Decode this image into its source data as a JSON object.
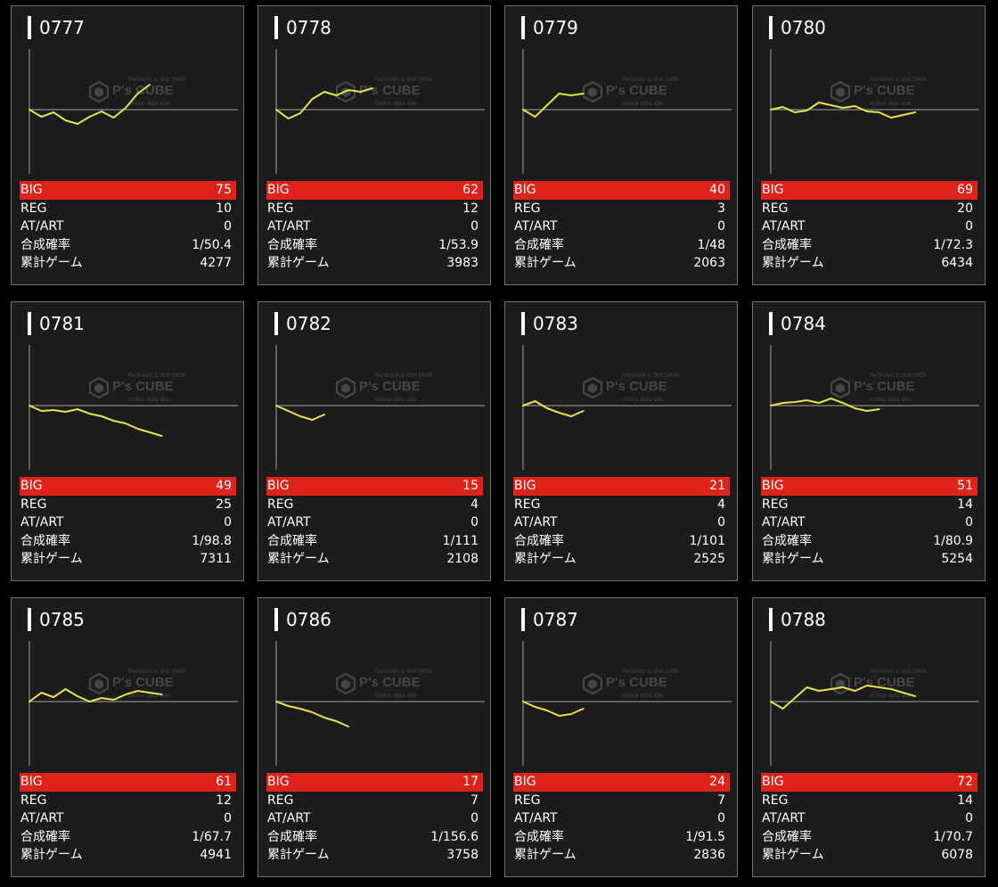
{
  "colors": {
    "big_row": "#e0231a",
    "line": "#e6e24d",
    "axis": "#8a8a8a",
    "panel": "#1c1c1c",
    "border": "#6e6e6e"
  },
  "watermark": {
    "brand": "P's CUBE",
    "sub": "Pachislot & Slot DATA",
    "sub2": "online data site"
  },
  "labels": {
    "big": "BIG",
    "reg": "REG",
    "at": "AT/ART",
    "prob": "合成確率",
    "games": "累計ゲーム"
  },
  "machines": [
    {
      "id": "0777",
      "big": "75",
      "reg": "10",
      "at": "0",
      "prob": "1/50.4",
      "games": "4277",
      "trend": [
        0,
        -8,
        -3,
        -12,
        -16,
        -8,
        -2,
        -9,
        2,
        18,
        28
      ]
    },
    {
      "id": "0778",
      "big": "62",
      "reg": "12",
      "at": "0",
      "prob": "1/53.9",
      "games": "3983",
      "trend": [
        0,
        -10,
        -4,
        12,
        20,
        16,
        22,
        20,
        24
      ]
    },
    {
      "id": "0779",
      "big": "40",
      "reg": "3",
      "at": "0",
      "prob": "1/48",
      "games": "2063",
      "trend": [
        0,
        -8,
        5,
        18,
        16,
        18
      ]
    },
    {
      "id": "0780",
      "big": "69",
      "reg": "20",
      "at": "0",
      "prob": "1/72.3",
      "games": "6434",
      "trend": [
        0,
        3,
        -3,
        -1,
        8,
        5,
        2,
        4,
        -2,
        -3,
        -9,
        -6,
        -3
      ]
    },
    {
      "id": "0781",
      "big": "49",
      "reg": "25",
      "at": "0",
      "prob": "1/98.8",
      "games": "7311",
      "trend": [
        0,
        -6,
        -5,
        -7,
        -4,
        -9,
        -12,
        -17,
        -20,
        -26,
        -30,
        -34
      ]
    },
    {
      "id": "0782",
      "big": "15",
      "reg": "4",
      "at": "0",
      "prob": "1/111",
      "games": "2108",
      "trend": [
        0,
        -6,
        -12,
        -16,
        -10
      ]
    },
    {
      "id": "0783",
      "big": "21",
      "reg": "4",
      "at": "0",
      "prob": "1/101",
      "games": "2525",
      "trend": [
        0,
        5,
        -3,
        -8,
        -12,
        -6
      ]
    },
    {
      "id": "0784",
      "big": "51",
      "reg": "14",
      "at": "0",
      "prob": "1/80.9",
      "games": "5254",
      "trend": [
        0,
        3,
        4,
        6,
        3,
        8,
        3,
        -3,
        -6,
        -4
      ]
    },
    {
      "id": "0785",
      "big": "61",
      "reg": "12",
      "at": "0",
      "prob": "1/67.7",
      "games": "4941",
      "trend": [
        0,
        10,
        5,
        14,
        6,
        0,
        4,
        2,
        8,
        12,
        10,
        8
      ]
    },
    {
      "id": "0786",
      "big": "17",
      "reg": "7",
      "at": "0",
      "prob": "1/156.6",
      "games": "3758",
      "trend": [
        0,
        -5,
        -8,
        -12,
        -18,
        -22,
        -28
      ]
    },
    {
      "id": "0787",
      "big": "24",
      "reg": "7",
      "at": "0",
      "prob": "1/91.5",
      "games": "2836",
      "trend": [
        0,
        -6,
        -10,
        -16,
        -14,
        -8
      ]
    },
    {
      "id": "0788",
      "big": "72",
      "reg": "14",
      "at": "0",
      "prob": "1/70.7",
      "games": "6078",
      "trend": [
        0,
        -8,
        4,
        16,
        12,
        14,
        16,
        12,
        18,
        16,
        14,
        10,
        6
      ]
    }
  ]
}
